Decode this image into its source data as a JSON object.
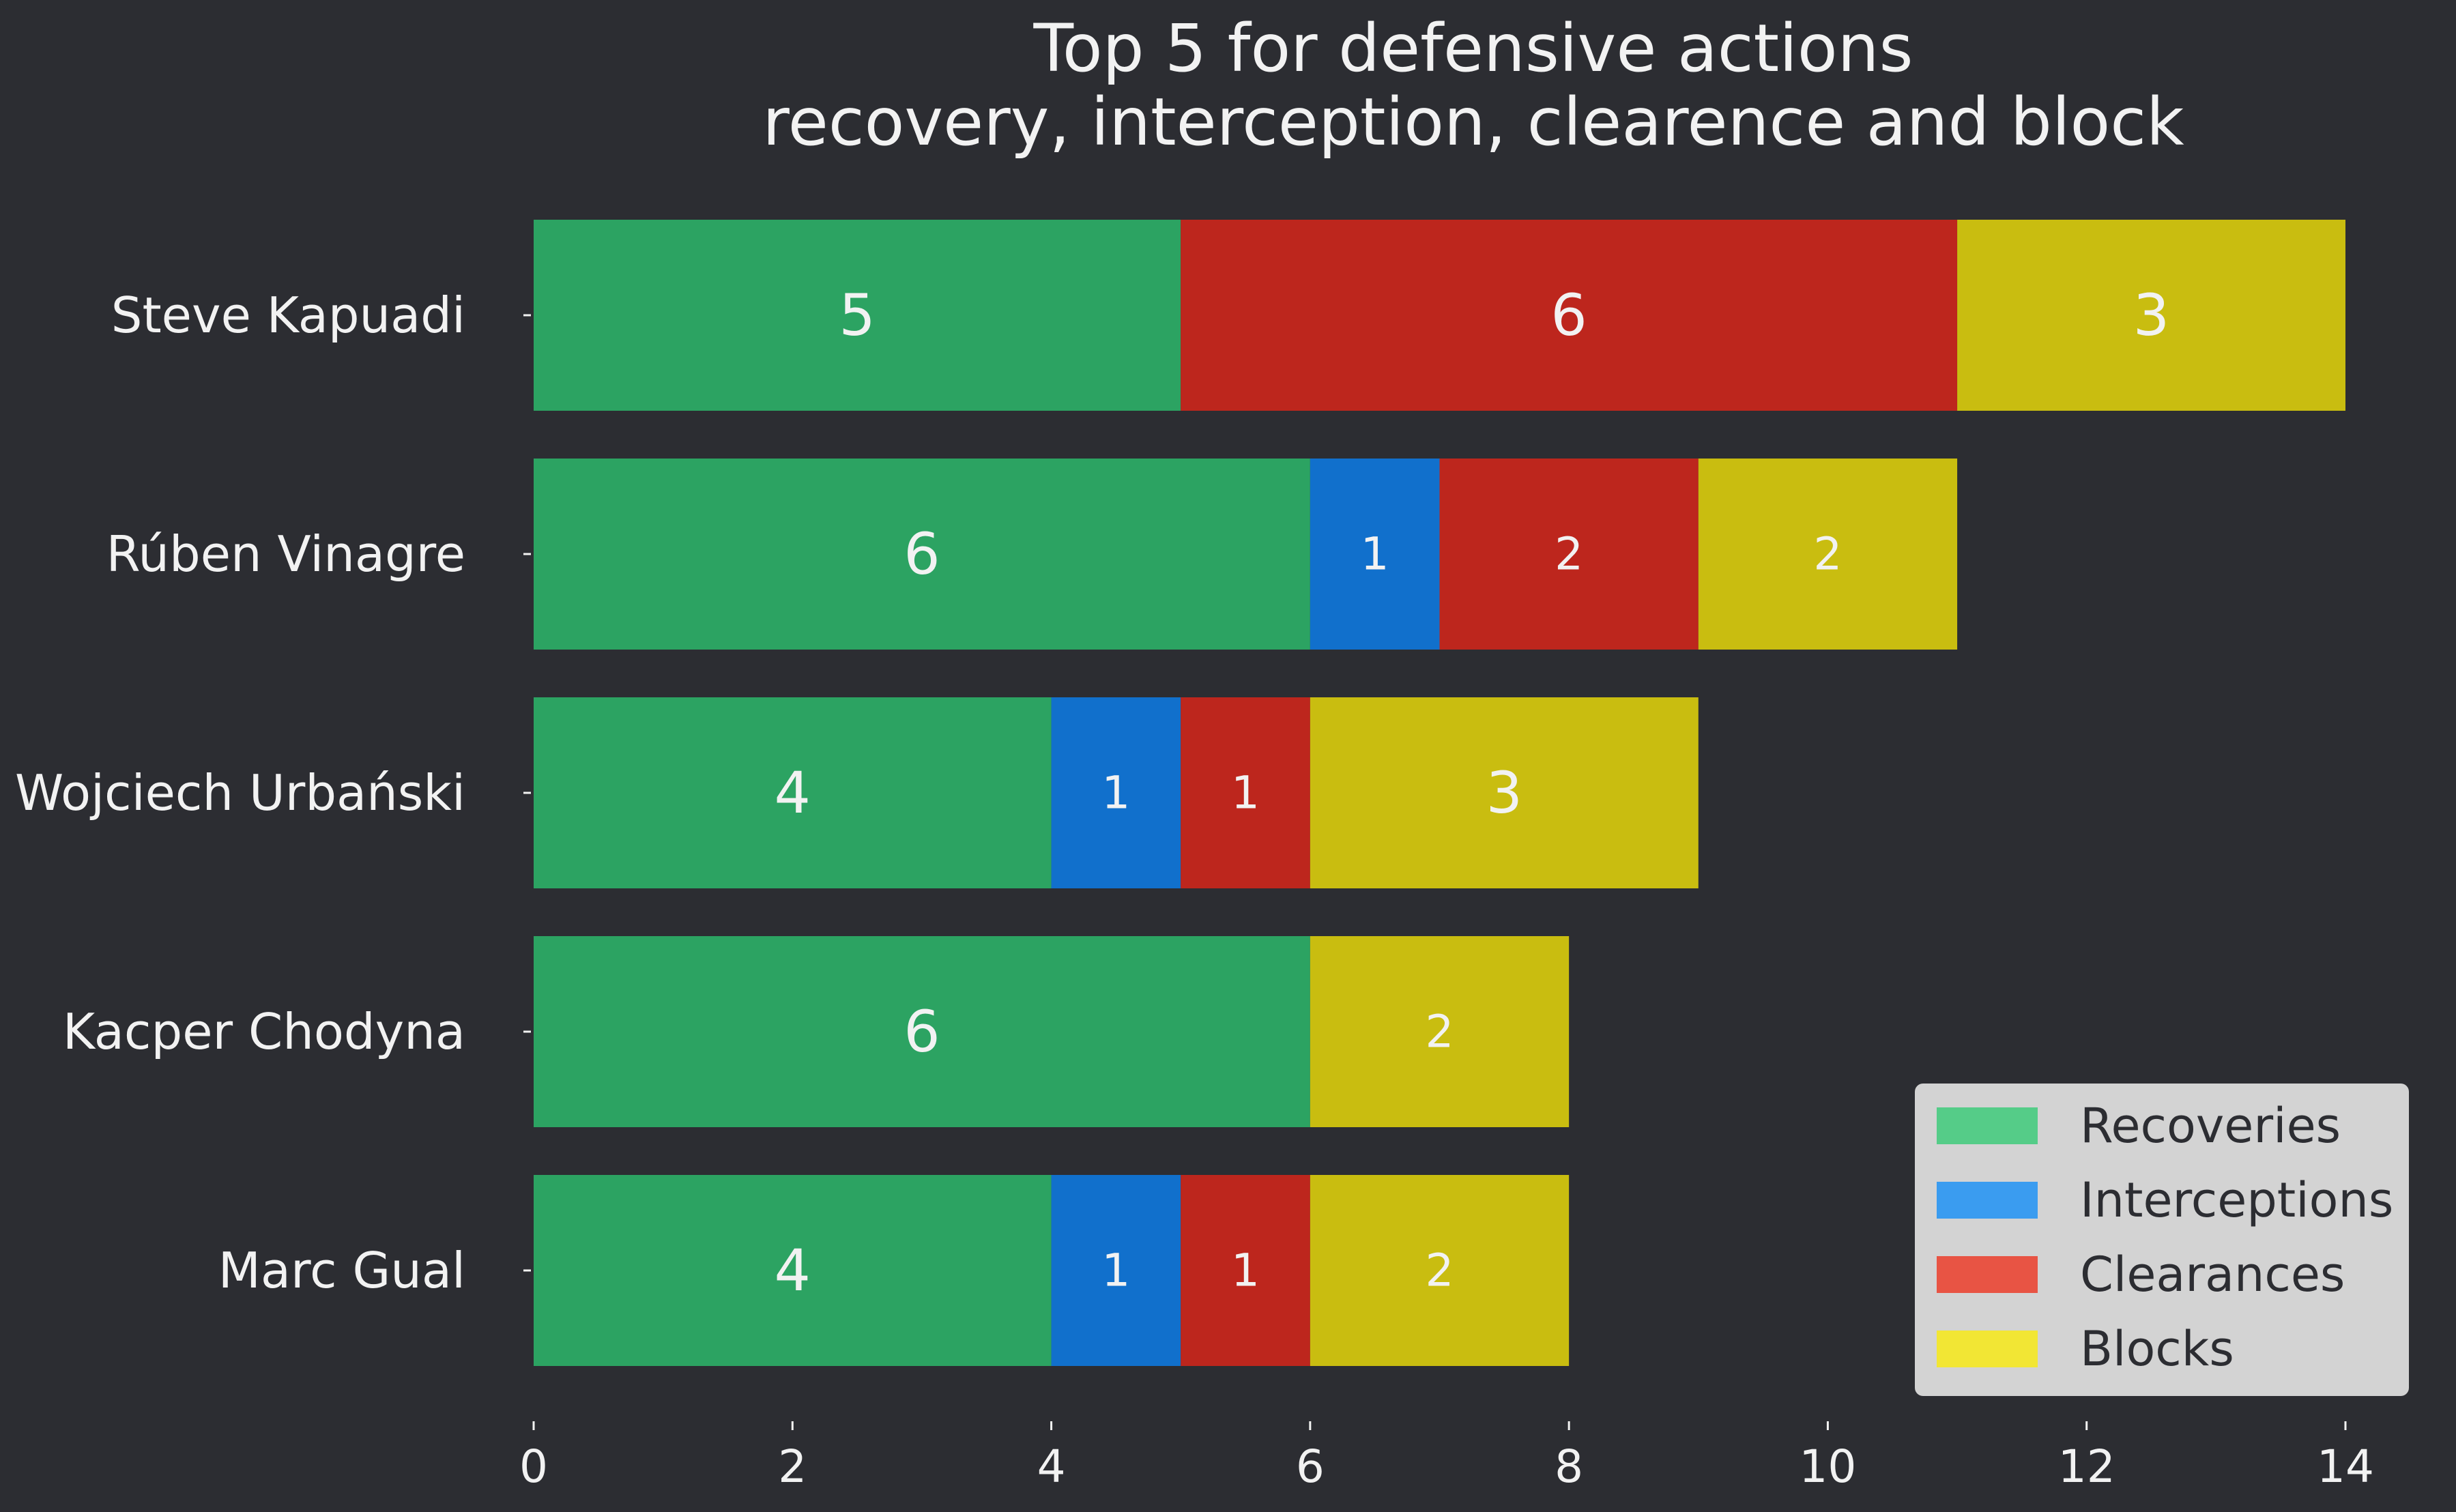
{
  "chart_data": {
    "type": "bar",
    "orientation": "horizontal",
    "stacked": true,
    "title_lines": [
      "Top 5 for defensive actions",
      "recovery, interception, clearence and block"
    ],
    "categories": [
      "Steve Kapuadi",
      "Rúben Vinagre",
      "Wojciech Urbański",
      "Kacper Chodyna",
      "Marc Gual"
    ],
    "series": [
      {
        "name": "Recoveries",
        "bar_color": "#2ca362",
        "legend_color": "#55cc88",
        "values": [
          5,
          6,
          4,
          6,
          4
        ]
      },
      {
        "name": "Interceptions",
        "bar_color": "#1170cc",
        "legend_color": "#3a9cf0",
        "values": [
          0,
          1,
          1,
          0,
          1
        ]
      },
      {
        "name": "Clearances",
        "bar_color": "#bd261d",
        "legend_color": "#e85444",
        "values": [
          6,
          2,
          1,
          0,
          1
        ]
      },
      {
        "name": "Blocks",
        "bar_color": "#c9bd10",
        "legend_color": "#f2e634",
        "values": [
          3,
          2,
          3,
          2,
          2
        ]
      }
    ],
    "xlim": [
      0,
      14
    ],
    "xticks": [
      "0",
      "2",
      "4",
      "6",
      "8",
      "10",
      "12",
      "14"
    ],
    "grid": false,
    "legend_position": "bottom-right",
    "colors": {
      "background": "#2c2d32",
      "text": "#f2f2f2",
      "legend_background": "#d3d3d3",
      "legend_text": "#2c2d32"
    }
  }
}
